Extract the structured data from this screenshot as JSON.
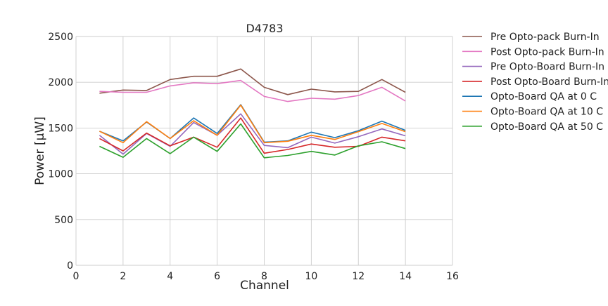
{
  "chart_data": {
    "type": "line",
    "title": "D4783",
    "xlabel": "Channel",
    "ylabel": "Power [μW]",
    "xlim": [
      0,
      16
    ],
    "ylim": [
      0,
      2500
    ],
    "xticks": [
      0,
      2,
      4,
      6,
      8,
      10,
      12,
      14,
      16
    ],
    "yticks": [
      0,
      500,
      1000,
      1500,
      2000,
      2500
    ],
    "grid": true,
    "legend_position": "outside-right",
    "x": [
      1,
      2,
      3,
      4,
      5,
      6,
      7,
      8,
      9,
      10,
      11,
      12,
      13,
      14
    ],
    "series": [
      {
        "name": "Pre Opto-pack Burn-In",
        "color": "#8c564b",
        "values": [
          1880,
          1915,
          1910,
          2030,
          2065,
          2065,
          2145,
          1945,
          1865,
          1925,
          1895,
          1900,
          2030,
          1890
        ]
      },
      {
        "name": "Post Opto-pack Burn-In",
        "color": "#e377c2",
        "values": [
          1900,
          1890,
          1890,
          1960,
          1995,
          1985,
          2020,
          1845,
          1790,
          1825,
          1815,
          1855,
          1945,
          1795
        ]
      },
      {
        "name": "Pre Opto-Board Burn-In",
        "color": "#9467bd",
        "values": [
          1420,
          1215,
          1440,
          1300,
          1560,
          1420,
          1655,
          1310,
          1285,
          1400,
          1335,
          1405,
          1490,
          1415
        ]
      },
      {
        "name": "Post Opto-Board Burn-In",
        "color": "#d62728",
        "values": [
          1385,
          1250,
          1445,
          1305,
          1400,
          1290,
          1610,
          1225,
          1265,
          1325,
          1290,
          1300,
          1400,
          1360
        ]
      },
      {
        "name": "Opto-Board QA at 0 C",
        "color": "#1f77b4",
        "values": [
          1465,
          1360,
          1565,
          1385,
          1610,
          1440,
          1755,
          1345,
          1360,
          1455,
          1395,
          1470,
          1575,
          1475
        ]
      },
      {
        "name": "Opto-Board QA at 10 C",
        "color": "#ff7f0e",
        "values": [
          1465,
          1340,
          1570,
          1385,
          1580,
          1420,
          1750,
          1340,
          1355,
          1420,
          1375,
          1460,
          1550,
          1460
        ]
      },
      {
        "name": "Opto-Board QA at 50 C",
        "color": "#2ca02c",
        "values": [
          1300,
          1180,
          1385,
          1220,
          1400,
          1245,
          1545,
          1175,
          1200,
          1245,
          1205,
          1305,
          1350,
          1275
        ]
      }
    ]
  }
}
